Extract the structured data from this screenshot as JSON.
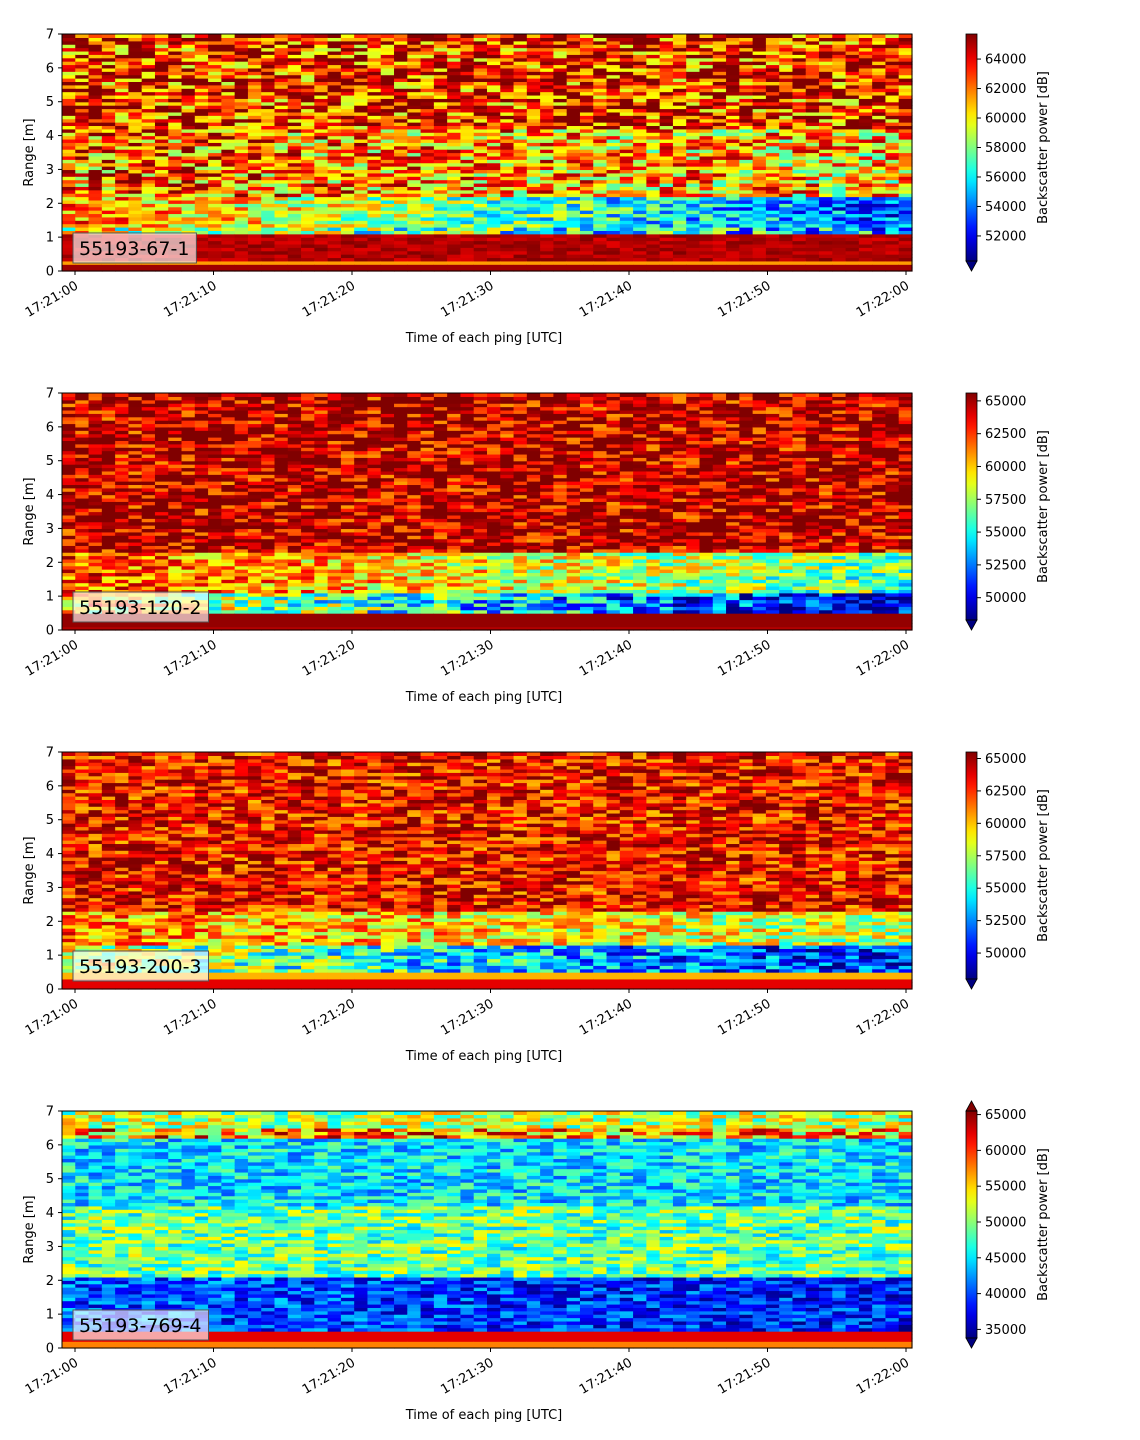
{
  "chart_data": [
    {
      "type": "heatmap",
      "label": "55193-67-1",
      "xlabel": "Time of each ping [UTC]",
      "ylabel": "Range [m]",
      "xticks": [
        "17:21:00",
        "17:21:10",
        "17:21:20",
        "17:21:30",
        "17:21:40",
        "17:21:50",
        "17:22:00"
      ],
      "x_range": [
        "17:21:00",
        "17:22:00"
      ],
      "yticks": [
        0,
        1,
        2,
        3,
        4,
        5,
        6,
        7
      ],
      "ylim": [
        0,
        7
      ],
      "colorbar_label": "Backscatter power [dB]",
      "colorbar_ticks": [
        52000,
        54000,
        56000,
        58000,
        60000,
        62000,
        64000
      ],
      "clim": [
        50300,
        65700
      ],
      "colorbar_extend": "min",
      "colormap": "jet"
    },
    {
      "type": "heatmap",
      "label": "55193-120-2",
      "xlabel": "Time of each ping [UTC]",
      "ylabel": "Range [m]",
      "xticks": [
        "17:21:00",
        "17:21:10",
        "17:21:20",
        "17:21:30",
        "17:21:40",
        "17:21:50",
        "17:22:00"
      ],
      "x_range": [
        "17:21:00",
        "17:22:00"
      ],
      "yticks": [
        0,
        1,
        2,
        3,
        4,
        5,
        6,
        7
      ],
      "ylim": [
        0,
        7
      ],
      "colorbar_label": "Backscatter power [dB]",
      "colorbar_ticks": [
        50000,
        52500,
        55000,
        57500,
        60000,
        62500,
        65000
      ],
      "clim": [
        48300,
        65600
      ],
      "colorbar_extend": "min",
      "colormap": "jet"
    },
    {
      "type": "heatmap",
      "label": "55193-200-3",
      "xlabel": "Time of each ping [UTC]",
      "ylabel": "Range [m]",
      "xticks": [
        "17:21:00",
        "17:21:10",
        "17:21:20",
        "17:21:30",
        "17:21:40",
        "17:21:50",
        "17:22:00"
      ],
      "x_range": [
        "17:21:00",
        "17:22:00"
      ],
      "yticks": [
        0,
        1,
        2,
        3,
        4,
        5,
        6,
        7
      ],
      "ylim": [
        0,
        7
      ],
      "colorbar_label": "Backscatter power [dB]",
      "colorbar_ticks": [
        50000,
        52500,
        55000,
        57500,
        60000,
        62500,
        65000
      ],
      "clim": [
        48000,
        65500
      ],
      "colorbar_extend": "min",
      "colormap": "jet"
    },
    {
      "type": "heatmap",
      "label": "55193-769-4",
      "xlabel": "Time of each ping [UTC]",
      "ylabel": "Range [m]",
      "xticks": [
        "17:21:00",
        "17:21:10",
        "17:21:20",
        "17:21:30",
        "17:21:40",
        "17:21:50",
        "17:22:00"
      ],
      "x_range": [
        "17:21:00",
        "17:22:00"
      ],
      "yticks": [
        0,
        1,
        2,
        3,
        4,
        5,
        6,
        7
      ],
      "ylim": [
        0,
        7
      ],
      "colorbar_label": "Backscatter power [dB]",
      "colorbar_ticks": [
        35000,
        40000,
        45000,
        50000,
        55000,
        60000,
        65000
      ],
      "clim": [
        33800,
        65500
      ],
      "colorbar_extend": "both",
      "colormap": "jet"
    }
  ]
}
